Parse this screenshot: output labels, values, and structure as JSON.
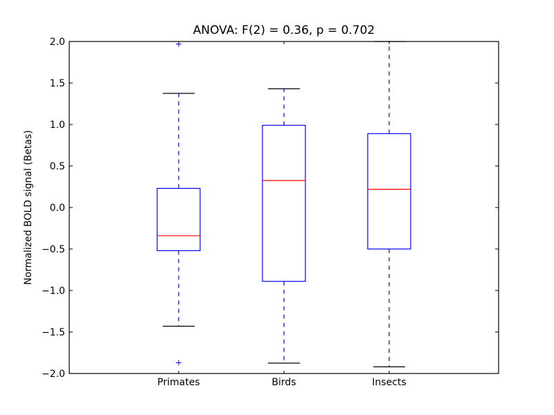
{
  "chart_data": {
    "type": "box",
    "title": "ANOVA: F(2) = 0.36, p = 0.702",
    "xlabel": "",
    "ylabel": "Normalized BOLD signal (Betas)",
    "ylim": [
      -2.0,
      2.0
    ],
    "yticks": [
      "−2.0",
      "−1.5",
      "−1.0",
      "−0.5",
      "0.0",
      "0.5",
      "1.0",
      "1.5",
      "2.0"
    ],
    "ytick_values": [
      -2.0,
      -1.5,
      -1.0,
      -0.5,
      0.0,
      0.5,
      1.0,
      1.5,
      2.0
    ],
    "grid": false,
    "legend": null,
    "categories": [
      "Primates",
      "Birds",
      "Insects"
    ],
    "series": [
      {
        "name": "Primates",
        "whisker_low": -1.43,
        "q1": -0.52,
        "median": -0.34,
        "q3": 0.23,
        "whisker_high": 1.375,
        "outliers": [
          1.97,
          -1.87
        ]
      },
      {
        "name": "Birds",
        "whisker_low": -1.875,
        "q1": -0.89,
        "median": 0.325,
        "q3": 0.99,
        "whisker_high": 1.43,
        "outliers": []
      },
      {
        "name": "Insects",
        "whisker_low": -1.92,
        "q1": -0.5,
        "median": 0.22,
        "q3": 0.89,
        "whisker_high": 2.0,
        "outliers": []
      }
    ],
    "colors": {
      "box": "#0000ff",
      "median": "#ff0000",
      "whisker_cap": "#000000",
      "flier": "#0000ff"
    }
  }
}
